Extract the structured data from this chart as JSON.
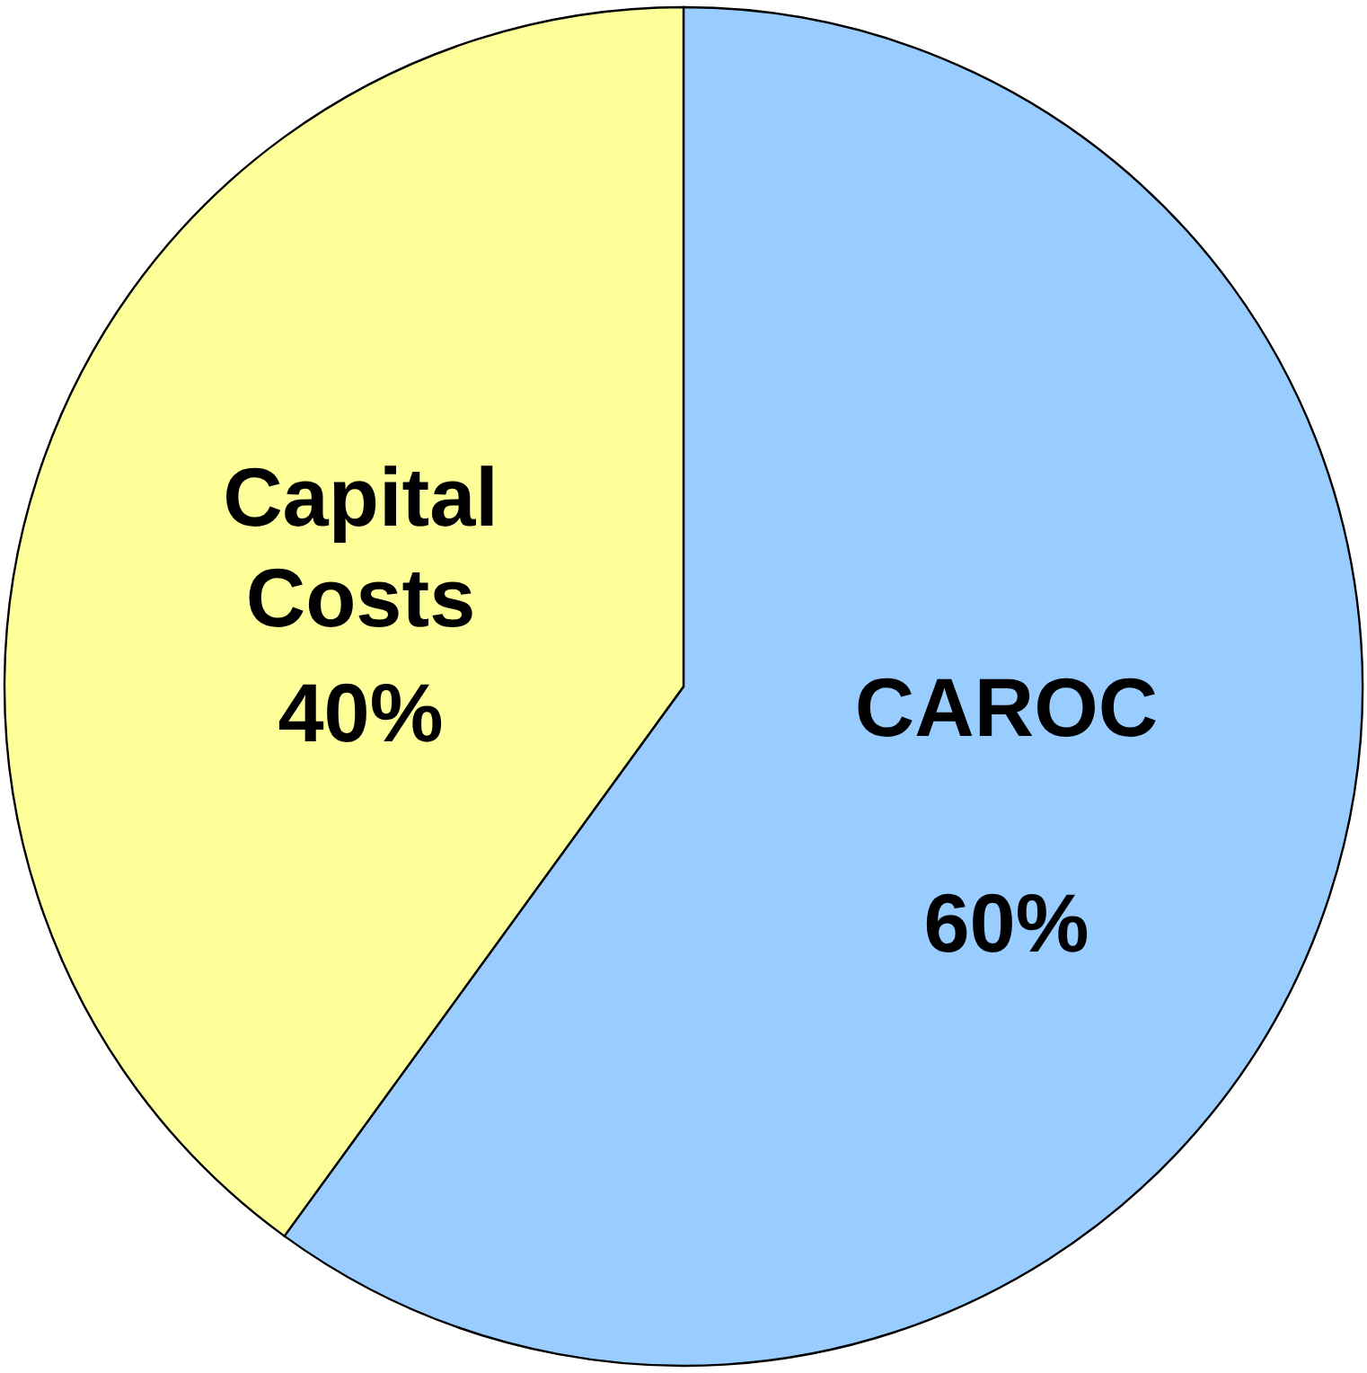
{
  "chart_data": {
    "type": "pie",
    "categories": [
      "CAROC",
      "Capital Costs"
    ],
    "values": [
      60,
      40
    ],
    "colors": [
      "#99ccff",
      "#ffff99"
    ],
    "value_labels": [
      "60%",
      "40%"
    ]
  }
}
